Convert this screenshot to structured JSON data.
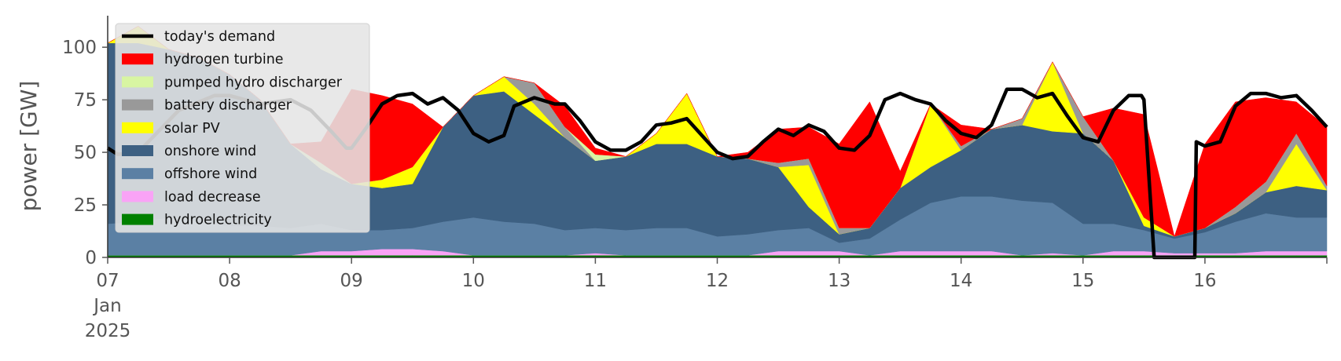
{
  "chart_data": {
    "type": "area",
    "title": "",
    "xlabel": "",
    "ylabel": "power [GW]",
    "xlim": [
      0,
      240
    ],
    "ylim": [
      0,
      115
    ],
    "yticks": [
      0,
      25,
      50,
      75,
      100
    ],
    "xticks": [
      {
        "hour": 0,
        "lines": [
          "07",
          "Jan",
          "2025"
        ]
      },
      {
        "hour": 24,
        "lines": [
          "08"
        ]
      },
      {
        "hour": 48,
        "lines": [
          "09"
        ]
      },
      {
        "hour": 72,
        "lines": [
          "10"
        ]
      },
      {
        "hour": 96,
        "lines": [
          "11"
        ]
      },
      {
        "hour": 120,
        "lines": [
          "12"
        ]
      },
      {
        "hour": 144,
        "lines": [
          "13"
        ]
      },
      {
        "hour": 168,
        "lines": [
          "14"
        ]
      },
      {
        "hour": 192,
        "lines": [
          "15"
        ]
      },
      {
        "hour": 216,
        "lines": [
          "16"
        ]
      }
    ],
    "grid": false,
    "legend_position": "top-left",
    "x_hours": [
      0,
      6,
      12,
      18,
      24,
      30,
      36,
      42,
      48,
      54,
      60,
      66,
      72,
      78,
      84,
      90,
      96,
      102,
      108,
      114,
      120,
      126,
      132,
      138,
      144,
      150,
      156,
      162,
      168,
      174,
      180,
      186,
      192,
      198,
      204,
      210,
      216,
      222,
      228,
      234,
      240
    ],
    "series": [
      {
        "name": "hydroelectricity",
        "color": "#008000",
        "values": [
          1,
          1,
          1,
          1,
          1,
          1,
          1,
          1,
          1,
          1,
          1,
          1,
          1,
          1,
          1,
          1,
          1,
          1,
          1,
          1,
          1,
          1,
          1,
          1,
          1,
          1,
          1,
          1,
          1,
          1,
          1,
          1,
          1,
          1,
          1,
          1,
          1,
          1,
          1,
          1,
          1
        ]
      },
      {
        "name": "load decrease",
        "color": "#f9a3f6",
        "values": [
          0,
          0,
          0,
          0,
          0,
          0,
          0,
          2,
          2,
          3,
          3,
          2,
          0,
          0,
          0,
          0,
          1,
          0,
          0,
          0,
          0,
          0,
          2,
          2,
          2,
          0,
          2,
          2,
          2,
          2,
          0,
          1,
          0,
          2,
          2,
          1,
          1,
          1,
          2,
          2,
          2
        ]
      },
      {
        "name": "offshore wind",
        "color": "#5b80a4",
        "values": [
          15,
          16,
          18,
          16,
          14,
          14,
          13,
          13,
          10,
          9,
          10,
          14,
          18,
          16,
          15,
          12,
          12,
          12,
          13,
          13,
          9,
          10,
          10,
          11,
          4,
          8,
          15,
          23,
          26,
          26,
          26,
          24,
          15,
          13,
          10,
          7,
          10,
          15,
          18,
          16,
          16
        ]
      },
      {
        "name": "onshore wind",
        "color": "#3d6082",
        "values": [
          86,
          85,
          80,
          78,
          72,
          60,
          40,
          26,
          22,
          20,
          21,
          45,
          58,
          62,
          52,
          44,
          32,
          35,
          40,
          40,
          38,
          36,
          30,
          10,
          4,
          5,
          15,
          17,
          22,
          32,
          36,
          34,
          43,
          30,
          2,
          1,
          2,
          4,
          10,
          15,
          13
        ]
      },
      {
        "name": "solar PV",
        "color": "#ffff00",
        "values": [
          0,
          8,
          0,
          0,
          0,
          0,
          0,
          0,
          0,
          4,
          8,
          0,
          0,
          7,
          5,
          0,
          0,
          0,
          5,
          24,
          0,
          0,
          0,
          20,
          0,
          0,
          0,
          30,
          0,
          0,
          0,
          33,
          0,
          0,
          4,
          0,
          0,
          0,
          0,
          20,
          0
        ]
      },
      {
        "name": "battery discharger",
        "color": "#999999",
        "values": [
          0,
          0,
          0,
          0,
          0,
          0,
          0,
          0,
          0,
          0,
          0,
          0,
          0,
          0,
          10,
          5,
          0,
          0,
          0,
          0,
          0,
          0,
          2,
          3,
          3,
          0,
          0,
          0,
          2,
          0,
          3,
          0,
          8,
          0,
          0,
          0,
          0,
          3,
          5,
          5,
          2
        ]
      },
      {
        "name": "pumped hydro discharger",
        "color": "#d8f5a2",
        "values": [
          0,
          0,
          0,
          0,
          0,
          0,
          0,
          3,
          0,
          0,
          0,
          0,
          0,
          0,
          0,
          0,
          3,
          0,
          0,
          0,
          0,
          0,
          0,
          0,
          0,
          0,
          0,
          0,
          0,
          0,
          0,
          0,
          0,
          0,
          0,
          0,
          0,
          0,
          0,
          0,
          0
        ]
      },
      {
        "name": "hydrogen turbine",
        "color": "#ff0000",
        "values": [
          0,
          0,
          0,
          0,
          0,
          0,
          0,
          10,
          45,
          40,
          30,
          0,
          0,
          0,
          0,
          10,
          3,
          0,
          0,
          0,
          0,
          3,
          16,
          15,
          40,
          60,
          8,
          0,
          10,
          0,
          0,
          0,
          0,
          25,
          49,
          0,
          40,
          50,
          40,
          15,
          28
        ]
      }
    ],
    "demand": {
      "name": "today's demand",
      "color": "#000000",
      "x_hours": [
        0,
        2,
        6,
        10,
        14,
        18,
        21,
        24,
        27,
        30,
        33,
        36,
        40,
        44,
        47,
        48,
        51,
        54,
        57,
        60,
        63,
        66,
        69,
        72,
        75,
        78,
        80,
        84,
        88,
        90,
        93,
        96,
        99,
        102,
        105,
        108,
        111,
        114,
        117,
        120,
        123,
        126,
        129,
        132,
        135,
        138,
        141,
        144,
        147,
        150,
        153,
        156,
        159,
        162,
        165,
        168,
        171,
        174,
        177,
        180,
        183,
        186,
        189,
        192,
        195,
        198,
        201,
        203.5,
        204,
        206,
        212,
        214,
        214.3,
        216,
        219,
        222,
        225,
        228,
        231,
        234,
        237,
        240
      ],
      "values": [
        52,
        49,
        50,
        60,
        70,
        74,
        77,
        77,
        75,
        73,
        74,
        75,
        70,
        60,
        52,
        52,
        62,
        73,
        77,
        78,
        73,
        76,
        70,
        59,
        55,
        58,
        72,
        76,
        73,
        73,
        65,
        55,
        51,
        51,
        55,
        63,
        64,
        66,
        58,
        50,
        47,
        48,
        55,
        61,
        58,
        63,
        60,
        52,
        51,
        58,
        75,
        78,
        75,
        73,
        65,
        59,
        57,
        63,
        80,
        80,
        76,
        78,
        67,
        57,
        55,
        70,
        77,
        77,
        75,
        0,
        0,
        0,
        55,
        53,
        55,
        72,
        78,
        78,
        76,
        77,
        70,
        62
      ]
    }
  }
}
